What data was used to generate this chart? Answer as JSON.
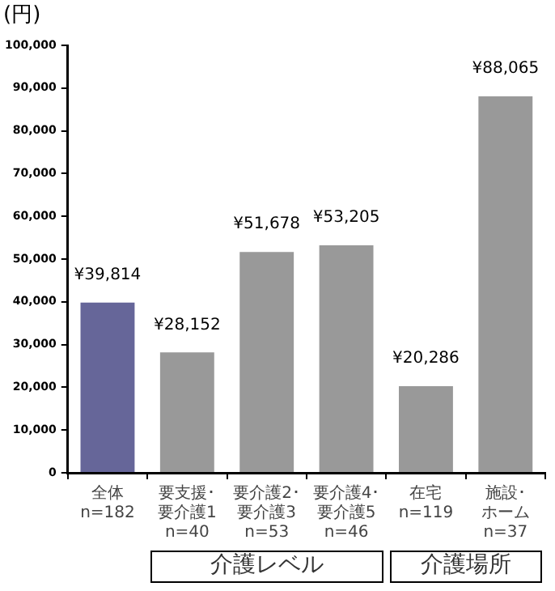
{
  "chart_data": {
    "type": "bar",
    "ylabel": "(円)",
    "categories": [
      "全体\nn=182",
      "要支援･要介護1\nn=40",
      "要介護2･要介護3\nn=53",
      "要介護4･要介護5\nn=46",
      "在宅\nn=119",
      "施設･ホーム\nn=37"
    ],
    "values": [
      39814,
      28152,
      51678,
      53205,
      20286,
      88065
    ],
    "colors": [
      "#666699",
      "#999999",
      "#999999",
      "#999999",
      "#999999",
      "#999999"
    ],
    "value_labels": [
      "¥39,814",
      "¥28,152",
      "¥51,678",
      "¥53,205",
      "¥20,286",
      "¥88,065"
    ],
    "ylim": [
      0,
      100000
    ],
    "yticks": [
      0,
      {
        "value": 10000,
        "label": "10,000"
      },
      {
        "value": 20000,
        "label": "20,000"
      },
      {
        "value": 30000,
        "label": "30,000"
      },
      {
        "value": 40000,
        "label": "40,000"
      },
      {
        "value": 50000,
        "label": "50,000"
      },
      {
        "value": 60000,
        "label": "60,000"
      },
      {
        "value": 70000,
        "label": "70,000"
      },
      {
        "value": 80000,
        "label": "80,000"
      },
      {
        "value": 90000,
        "label": "90,000"
      },
      {
        "value": 100000,
        "label": "100,000"
      }
    ],
    "grid": false,
    "legend": false,
    "annotations": [
      "介護レベル",
      "介護場所"
    ]
  }
}
